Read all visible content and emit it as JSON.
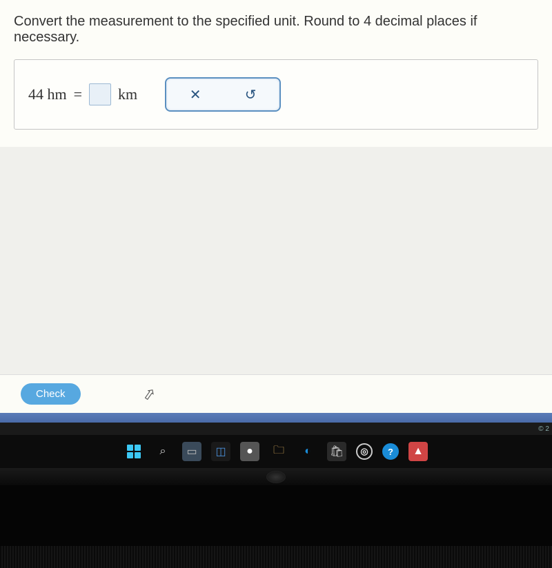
{
  "instruction": "Convert the measurement to the specified unit. Round to 4 decimal places if necessary.",
  "problem": {
    "left_value": "44 hm",
    "equals": "=",
    "right_unit": "km",
    "answer_value": ""
  },
  "tool_buttons": {
    "clear_symbol": "✕",
    "undo_symbol": "↺"
  },
  "check_button_label": "Check",
  "notification": "© 2",
  "taskbar": {
    "icons": [
      {
        "name": "start-icon",
        "type": "windows"
      },
      {
        "name": "search-icon",
        "glyph": "⌕",
        "color": "#ddd",
        "bg": "transparent"
      },
      {
        "name": "task-view-icon",
        "glyph": "▭",
        "color": "#bbb",
        "bg": "#3a4a5a"
      },
      {
        "name": "widgets-icon",
        "glyph": "◫",
        "color": "#4a90d9",
        "bg": "#1a1a1a"
      },
      {
        "name": "chat-icon",
        "glyph": "●",
        "color": "#fff",
        "bg": "#555"
      },
      {
        "name": "explorer-icon",
        "glyph": "🗀",
        "color": "#f5c068",
        "bg": "transparent"
      },
      {
        "name": "edge-icon",
        "glyph": "◐",
        "color": "#1a8cd8",
        "bg": "transparent"
      },
      {
        "name": "store-icon",
        "glyph": "🛍",
        "color": "#ccc",
        "bg": "#2a2a2a"
      },
      {
        "name": "app1-icon",
        "glyph": "◎",
        "color": "#e0e0e0",
        "bg": "transparent",
        "circle": true,
        "border": "#ccc"
      },
      {
        "name": "help-icon",
        "glyph": "?",
        "color": "#fff",
        "bg": "#1a8cd8",
        "circle": true,
        "border": "#1a8cd8"
      },
      {
        "name": "app2-icon",
        "glyph": "▲",
        "color": "#fff",
        "bg": "#d04545"
      }
    ],
    "windows_colors": [
      "#3cc8f5",
      "#3cc8f5",
      "#3cc8f5",
      "#3cc8f5"
    ]
  },
  "colors": {
    "instruction_text": "#333333",
    "page_bg": "#f0f0ec",
    "box_border": "#c5c5c5",
    "input_border": "#9bb8d3",
    "input_bg": "#e8f0f7",
    "tool_panel_border": "#5a8fc0",
    "tool_panel_bg": "#eaf1f8",
    "check_bg": "#57a8e0",
    "blue_strip": "#4a6ba8",
    "taskbar_bg": "#0c0c0c"
  }
}
